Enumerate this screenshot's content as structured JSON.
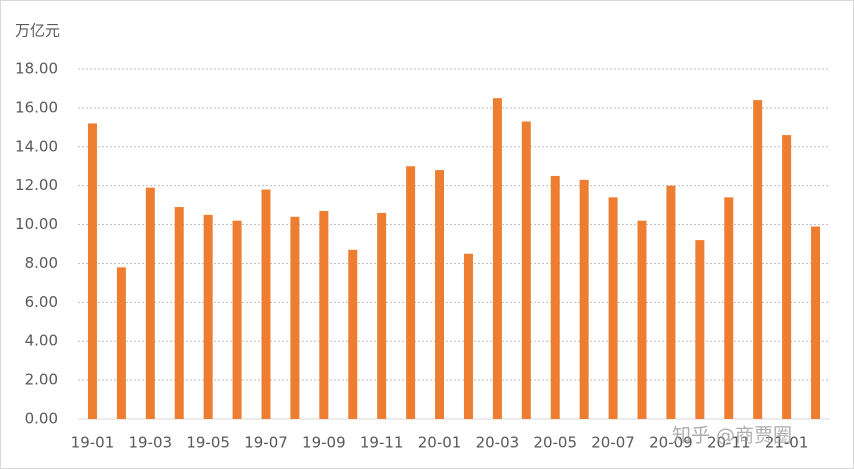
{
  "chart_data": {
    "type": "bar",
    "y_label": "万亿元",
    "categories": [
      "19-01",
      null,
      "19-03",
      null,
      "19-05",
      null,
      "19-07",
      null,
      "19-09",
      null,
      "19-11",
      null,
      "20-01",
      null,
      "20-03",
      null,
      "20-05",
      null,
      "20-07",
      null,
      "20-09",
      null,
      "20-11",
      null,
      "21-01",
      null
    ],
    "values": [
      15.2,
      7.8,
      11.9,
      10.9,
      10.5,
      10.2,
      11.8,
      10.4,
      10.7,
      8.7,
      10.6,
      13.0,
      12.8,
      8.5,
      16.5,
      15.3,
      12.5,
      12.3,
      11.4,
      10.2,
      12.0,
      9.2,
      11.4,
      16.4,
      14.6,
      9.9
    ],
    "color": "#ed7d31",
    "ylim": [
      0,
      18
    ],
    "yticks": [
      {
        "value": 0,
        "label": "0.00"
      },
      {
        "value": 2,
        "label": "2.00"
      },
      {
        "value": 4,
        "label": "4.00"
      },
      {
        "value": 6,
        "label": "6.00"
      },
      {
        "value": 8,
        "label": "8.00"
      },
      {
        "value": 10,
        "label": "10.00"
      },
      {
        "value": 12,
        "label": "12.00"
      },
      {
        "value": 14,
        "label": "14.00"
      },
      {
        "value": 16,
        "label": "16.00"
      },
      {
        "value": 18,
        "label": "18.00"
      }
    ],
    "grid": true,
    "watermark": "知乎 @商贾圈"
  }
}
